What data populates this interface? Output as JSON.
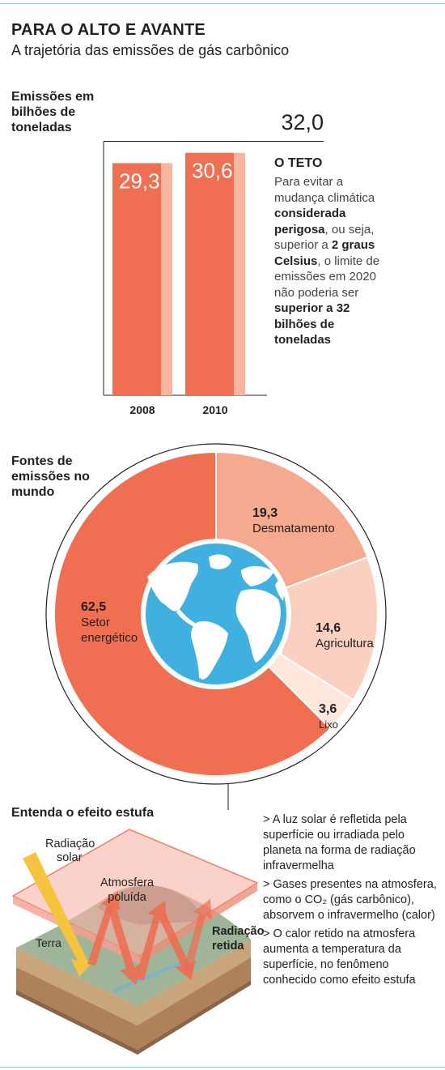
{
  "header": {
    "title": "PARA O ALTO E AVANTE",
    "subtitle": "A trajetória das emissões de gás carbônico"
  },
  "emissions": {
    "label": "Emissões em bilhões de toneladas",
    "label_lines": [
      "Emissões em",
      "bilhões de",
      "toneladas"
    ],
    "cap_label": "32,0",
    "teto": {
      "title": "O TETO",
      "lines": [
        {
          "text": "Para evitar a",
          "bold": false
        },
        {
          "text": "mudança climática",
          "bold": false
        },
        {
          "text": "considerada",
          "bold": true
        },
        {
          "text": "perigosa",
          "bold": true,
          "after": ", ou seja,"
        },
        {
          "text": "superior a ",
          "bold": false,
          "after_bold": "2 graus"
        },
        {
          "text": "Celsius",
          "bold": true,
          "after": ", o limite de"
        },
        {
          "text": "emissões em 2020",
          "bold": false
        },
        {
          "text": "não poderia ser",
          "bold": false
        },
        {
          "text": "superior a 32",
          "bold": true
        },
        {
          "text": "bilhões de",
          "bold": true
        },
        {
          "text": "toneladas",
          "bold": true
        }
      ]
    }
  },
  "sources": {
    "label_lines": [
      "Fontes de",
      "emissões no",
      "mundo"
    ]
  },
  "greenhouse": {
    "title": "Entenda o efeito estufa",
    "labels": {
      "solar": [
        "Radiação",
        "solar"
      ],
      "atmosphere": [
        "Atmosfera",
        "poluída"
      ],
      "earth": "Terra",
      "retained": [
        "Radiação",
        "retida"
      ]
    },
    "points": [
      "> A luz solar é refletida pela superfície ou irradiada pelo planeta na forma de radiação infravermelha",
      "> Gases presentes na atmosfera, como o CO₂ (gás carbônico), absorvem o infravermelho (calor)",
      "> O calor retido na atmosfera aumenta a temperatura da superfície, no fenômeno conhecido como efeito estufa"
    ]
  },
  "colors": {
    "bar": "#f06f52",
    "bar_light": "#f7b5a0",
    "energy": "#f06f52",
    "deforestation": "#f5a98f",
    "agriculture": "#fad0c0",
    "waste": "#fde7dd",
    "globe_ocean": "#3fb0e0",
    "globe_land": "#ffffff"
  },
  "chart_data": [
    {
      "type": "bar",
      "categories": [
        "2008",
        "2010"
      ],
      "values": [
        29.3,
        30.6
      ],
      "value_labels": [
        "29,3",
        "30,6"
      ],
      "reference_line": {
        "value": 32.0,
        "label": "32,0"
      },
      "ylabel": "Emissões em bilhões de toneladas",
      "ylim": [
        0,
        32.0
      ],
      "grid": false
    },
    {
      "type": "pie",
      "donut": true,
      "categories": [
        "Setor energético",
        "Desmatamento",
        "Agricultura",
        "Lixo"
      ],
      "values": [
        62.5,
        19.3,
        14.6,
        3.6
      ],
      "value_labels": [
        "62,5",
        "19,3",
        "14,6",
        "3,6"
      ],
      "title": "Fontes de emissões no mundo"
    }
  ]
}
